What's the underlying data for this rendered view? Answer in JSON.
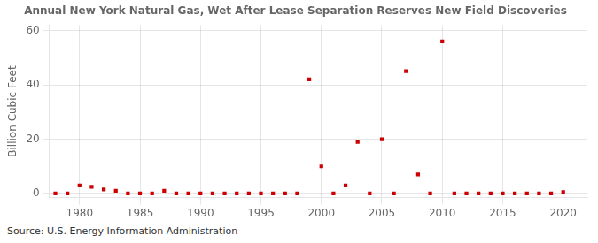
{
  "chart_data": {
    "type": "scatter",
    "title": "Annual New York Natural Gas, Wet After Lease Separation Reserves New Field Discoveries",
    "ylabel": "Billion Cubic Feet",
    "source": "Source: U.S. Energy Information Administration",
    "color": "#cc0000",
    "marker": "square",
    "grid": true,
    "xlim": [
      1977.5,
      2022
    ],
    "ylim": [
      -1.5,
      62
    ],
    "xticks": [
      1980,
      1985,
      1990,
      1995,
      2000,
      2005,
      2010,
      2015,
      2020
    ],
    "yticks": [
      0,
      20,
      40,
      60
    ],
    "x": [
      1978,
      1979,
      1980,
      1981,
      1982,
      1983,
      1984,
      1985,
      1986,
      1987,
      1988,
      1989,
      1990,
      1991,
      1992,
      1993,
      1994,
      1995,
      1996,
      1997,
      1998,
      1999,
      2000,
      2001,
      2002,
      2003,
      2004,
      2005,
      2006,
      2007,
      2008,
      2009,
      2010,
      2011,
      2012,
      2013,
      2014,
      2015,
      2016,
      2017,
      2018,
      2019,
      2020
    ],
    "values": [
      0.0,
      0.0,
      3.0,
      2.5,
      1.5,
      1.0,
      0.0,
      0.0,
      0.0,
      1.0,
      0.0,
      0.0,
      0.0,
      0.0,
      0.0,
      0.0,
      0.0,
      0.0,
      0.0,
      0.0,
      0.0,
      42.0,
      10.0,
      0.0,
      3.0,
      19.0,
      0.0,
      20.0,
      0.0,
      45.0,
      7.0,
      0.0,
      56.0,
      0.0,
      0.0,
      0.0,
      0.0,
      0.0,
      0.0,
      0.0,
      0.0,
      0.0,
      0.5
    ]
  }
}
